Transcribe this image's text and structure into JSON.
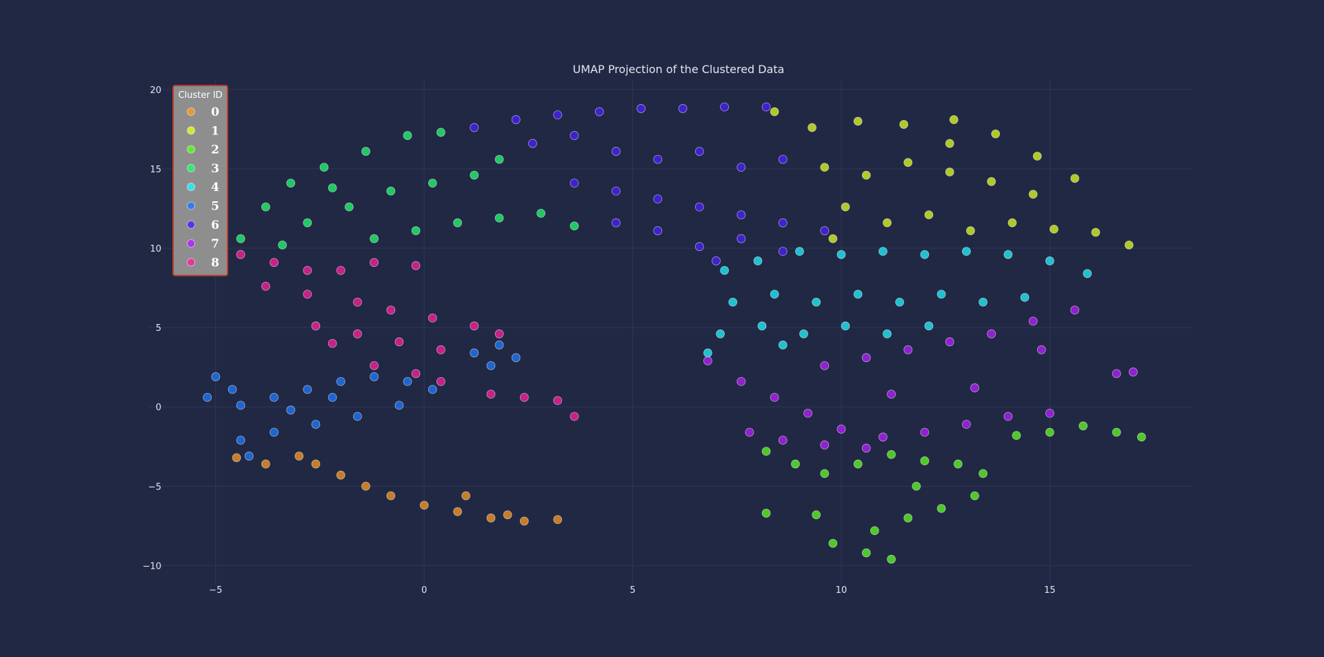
{
  "chart_data": {
    "type": "scatter",
    "title": "UMAP Projection of the Clustered Data",
    "xlabel": "",
    "ylabel": "",
    "xlim": [
      -6.6,
      18.4
    ],
    "ylim": [
      -11.2,
      20.6
    ],
    "xticks": [
      -5,
      0,
      5,
      10,
      15
    ],
    "yticks": [
      -10,
      -5,
      0,
      5,
      10,
      15,
      20
    ],
    "xtick_labels": [
      "−5",
      "0",
      "5",
      "10",
      "15"
    ],
    "ytick_labels": [
      "−10",
      "−5",
      "0",
      "5",
      "10",
      "15",
      "20"
    ],
    "grid": true,
    "legend": {
      "title": "Cluster ID",
      "placement": "top-left",
      "background": "#8e8e8e",
      "border_color": "#c0392b"
    },
    "series": [
      {
        "name": "0",
        "color": "#ff9a1f",
        "points": [
          [
            -4.5,
            -3.2
          ],
          [
            -3.8,
            -3.6
          ],
          [
            -3.0,
            -3.1
          ],
          [
            -2.6,
            -3.6
          ],
          [
            -2.0,
            -4.3
          ],
          [
            -1.4,
            -5.0
          ],
          [
            -0.8,
            -5.6
          ],
          [
            0.0,
            -6.2
          ],
          [
            0.8,
            -6.6
          ],
          [
            1.6,
            -7.0
          ],
          [
            2.4,
            -7.2
          ],
          [
            3.2,
            -7.1
          ],
          [
            1.0,
            -5.6
          ],
          [
            2.0,
            -6.8
          ]
        ]
      },
      {
        "name": "1",
        "color": "#e2ff1f",
        "points": [
          [
            8.4,
            18.6
          ],
          [
            9.3,
            17.6
          ],
          [
            10.4,
            18.0
          ],
          [
            11.5,
            17.8
          ],
          [
            12.7,
            18.1
          ],
          [
            13.7,
            17.2
          ],
          [
            14.7,
            15.8
          ],
          [
            15.6,
            14.4
          ],
          [
            9.6,
            15.1
          ],
          [
            10.6,
            14.6
          ],
          [
            11.6,
            15.4
          ],
          [
            12.6,
            14.8
          ],
          [
            13.6,
            14.2
          ],
          [
            14.6,
            13.4
          ],
          [
            10.1,
            12.6
          ],
          [
            11.1,
            11.6
          ],
          [
            12.1,
            12.1
          ],
          [
            13.1,
            11.1
          ],
          [
            14.1,
            11.6
          ],
          [
            15.1,
            11.2
          ],
          [
            16.1,
            11.0
          ],
          [
            16.9,
            10.2
          ],
          [
            9.8,
            10.6
          ],
          [
            12.6,
            16.6
          ]
        ]
      },
      {
        "name": "2",
        "color": "#5dff1f",
        "points": [
          [
            8.2,
            -2.8
          ],
          [
            8.9,
            -3.6
          ],
          [
            9.6,
            -4.2
          ],
          [
            10.4,
            -3.6
          ],
          [
            11.2,
            -3.0
          ],
          [
            12.0,
            -3.4
          ],
          [
            12.8,
            -3.6
          ],
          [
            13.4,
            -4.2
          ],
          [
            13.2,
            -5.6
          ],
          [
            12.4,
            -6.4
          ],
          [
            11.6,
            -7.0
          ],
          [
            10.8,
            -7.8
          ],
          [
            9.8,
            -8.6
          ],
          [
            10.6,
            -9.2
          ],
          [
            11.2,
            -9.6
          ],
          [
            8.2,
            -6.7
          ],
          [
            14.2,
            -1.8
          ],
          [
            15.0,
            -1.6
          ],
          [
            15.8,
            -1.2
          ],
          [
            16.6,
            -1.6
          ],
          [
            17.2,
            -1.9
          ],
          [
            9.4,
            -6.8
          ],
          [
            11.8,
            -5.0
          ]
        ]
      },
      {
        "name": "3",
        "color": "#1fff6e",
        "points": [
          [
            -4.4,
            10.6
          ],
          [
            -3.8,
            12.6
          ],
          [
            -3.2,
            14.1
          ],
          [
            -2.4,
            15.1
          ],
          [
            -1.4,
            16.1
          ],
          [
            -0.4,
            17.1
          ],
          [
            0.4,
            17.3
          ],
          [
            -2.8,
            11.6
          ],
          [
            -1.8,
            12.6
          ],
          [
            -0.8,
            13.6
          ],
          [
            0.2,
            14.1
          ],
          [
            1.2,
            14.6
          ],
          [
            1.8,
            15.6
          ],
          [
            -1.2,
            10.6
          ],
          [
            -0.2,
            11.1
          ],
          [
            0.8,
            11.6
          ],
          [
            1.8,
            11.9
          ],
          [
            2.8,
            12.2
          ],
          [
            3.6,
            11.4
          ],
          [
            -3.4,
            10.2
          ],
          [
            -2.2,
            13.8
          ]
        ]
      },
      {
        "name": "4",
        "color": "#1ff4ff",
        "points": [
          [
            7.2,
            8.6
          ],
          [
            8.0,
            9.2
          ],
          [
            9.0,
            9.8
          ],
          [
            10.0,
            9.6
          ],
          [
            11.0,
            9.8
          ],
          [
            12.0,
            9.6
          ],
          [
            13.0,
            9.8
          ],
          [
            14.0,
            9.6
          ],
          [
            15.0,
            9.2
          ],
          [
            15.9,
            8.4
          ],
          [
            7.4,
            6.6
          ],
          [
            8.4,
            7.1
          ],
          [
            9.4,
            6.6
          ],
          [
            10.4,
            7.1
          ],
          [
            11.4,
            6.6
          ],
          [
            12.4,
            7.1
          ],
          [
            13.4,
            6.6
          ],
          [
            14.4,
            6.9
          ],
          [
            7.1,
            4.6
          ],
          [
            8.1,
            5.1
          ],
          [
            9.1,
            4.6
          ],
          [
            10.1,
            5.1
          ],
          [
            11.1,
            4.6
          ],
          [
            12.1,
            5.1
          ],
          [
            6.8,
            3.4
          ],
          [
            8.6,
            3.9
          ]
        ]
      },
      {
        "name": "5",
        "color": "#1f7aff",
        "points": [
          [
            -5.0,
            1.9
          ],
          [
            -4.6,
            1.1
          ],
          [
            -5.2,
            0.6
          ],
          [
            -4.4,
            0.1
          ],
          [
            -3.6,
            0.6
          ],
          [
            -2.8,
            1.1
          ],
          [
            -2.0,
            1.6
          ],
          [
            -1.2,
            1.9
          ],
          [
            -0.4,
            1.6
          ],
          [
            0.2,
            1.1
          ],
          [
            -0.6,
            0.1
          ],
          [
            -1.6,
            -0.6
          ],
          [
            -2.6,
            -1.1
          ],
          [
            -3.6,
            -1.6
          ],
          [
            -4.4,
            -2.1
          ],
          [
            -4.2,
            -3.1
          ],
          [
            1.6,
            2.6
          ],
          [
            2.2,
            3.1
          ],
          [
            1.8,
            3.9
          ],
          [
            1.2,
            3.4
          ],
          [
            -3.2,
            -0.2
          ],
          [
            -2.2,
            0.6
          ]
        ]
      },
      {
        "name": "6",
        "color": "#4a1fff",
        "points": [
          [
            1.2,
            17.6
          ],
          [
            2.2,
            18.1
          ],
          [
            3.2,
            18.4
          ],
          [
            4.2,
            18.6
          ],
          [
            5.2,
            18.8
          ],
          [
            6.2,
            18.8
          ],
          [
            7.2,
            18.9
          ],
          [
            8.2,
            18.9
          ],
          [
            2.6,
            16.6
          ],
          [
            3.6,
            17.1
          ],
          [
            4.6,
            16.1
          ],
          [
            5.6,
            15.6
          ],
          [
            6.6,
            16.1
          ],
          [
            7.6,
            15.1
          ],
          [
            8.6,
            15.6
          ],
          [
            3.6,
            14.1
          ],
          [
            4.6,
            13.6
          ],
          [
            5.6,
            13.1
          ],
          [
            6.6,
            12.6
          ],
          [
            7.6,
            12.1
          ],
          [
            8.6,
            11.6
          ],
          [
            9.6,
            11.1
          ],
          [
            4.6,
            11.6
          ],
          [
            5.6,
            11.1
          ],
          [
            6.6,
            10.1
          ],
          [
            7.6,
            10.6
          ],
          [
            8.6,
            9.8
          ],
          [
            7.0,
            9.2
          ]
        ]
      },
      {
        "name": "7",
        "color": "#b41fff",
        "points": [
          [
            6.8,
            2.9
          ],
          [
            7.6,
            1.6
          ],
          [
            8.4,
            0.6
          ],
          [
            9.2,
            -0.4
          ],
          [
            10.0,
            -1.4
          ],
          [
            11.0,
            -1.9
          ],
          [
            12.0,
            -1.6
          ],
          [
            13.0,
            -1.1
          ],
          [
            14.0,
            -0.6
          ],
          [
            15.0,
            -0.4
          ],
          [
            7.8,
            -1.6
          ],
          [
            8.6,
            -2.1
          ],
          [
            9.6,
            -2.4
          ],
          [
            10.6,
            -2.6
          ],
          [
            9.6,
            2.6
          ],
          [
            10.6,
            3.1
          ],
          [
            11.6,
            3.6
          ],
          [
            12.6,
            4.1
          ],
          [
            13.6,
            4.6
          ],
          [
            14.6,
            5.4
          ],
          [
            15.6,
            6.1
          ],
          [
            16.6,
            2.1
          ],
          [
            17.0,
            2.2
          ],
          [
            11.2,
            0.8
          ],
          [
            13.2,
            1.2
          ],
          [
            14.8,
            3.6
          ]
        ]
      },
      {
        "name": "8",
        "color": "#ff1f9f",
        "points": [
          [
            -4.4,
            9.6
          ],
          [
            -3.6,
            9.1
          ],
          [
            -2.8,
            8.6
          ],
          [
            -2.0,
            8.6
          ],
          [
            -1.2,
            9.1
          ],
          [
            -0.2,
            8.9
          ],
          [
            -3.8,
            7.6
          ],
          [
            -2.8,
            7.1
          ],
          [
            -1.6,
            6.6
          ],
          [
            -0.8,
            6.1
          ],
          [
            0.2,
            5.6
          ],
          [
            1.2,
            5.1
          ],
          [
            1.8,
            4.6
          ],
          [
            -2.6,
            5.1
          ],
          [
            -1.6,
            4.6
          ],
          [
            -0.6,
            4.1
          ],
          [
            0.4,
            3.6
          ],
          [
            -1.2,
            2.6
          ],
          [
            -0.2,
            2.1
          ],
          [
            0.4,
            1.6
          ],
          [
            1.6,
            0.8
          ],
          [
            2.4,
            0.6
          ],
          [
            3.2,
            0.4
          ],
          [
            3.6,
            -0.6
          ],
          [
            -2.2,
            4.0
          ]
        ]
      }
    ]
  }
}
